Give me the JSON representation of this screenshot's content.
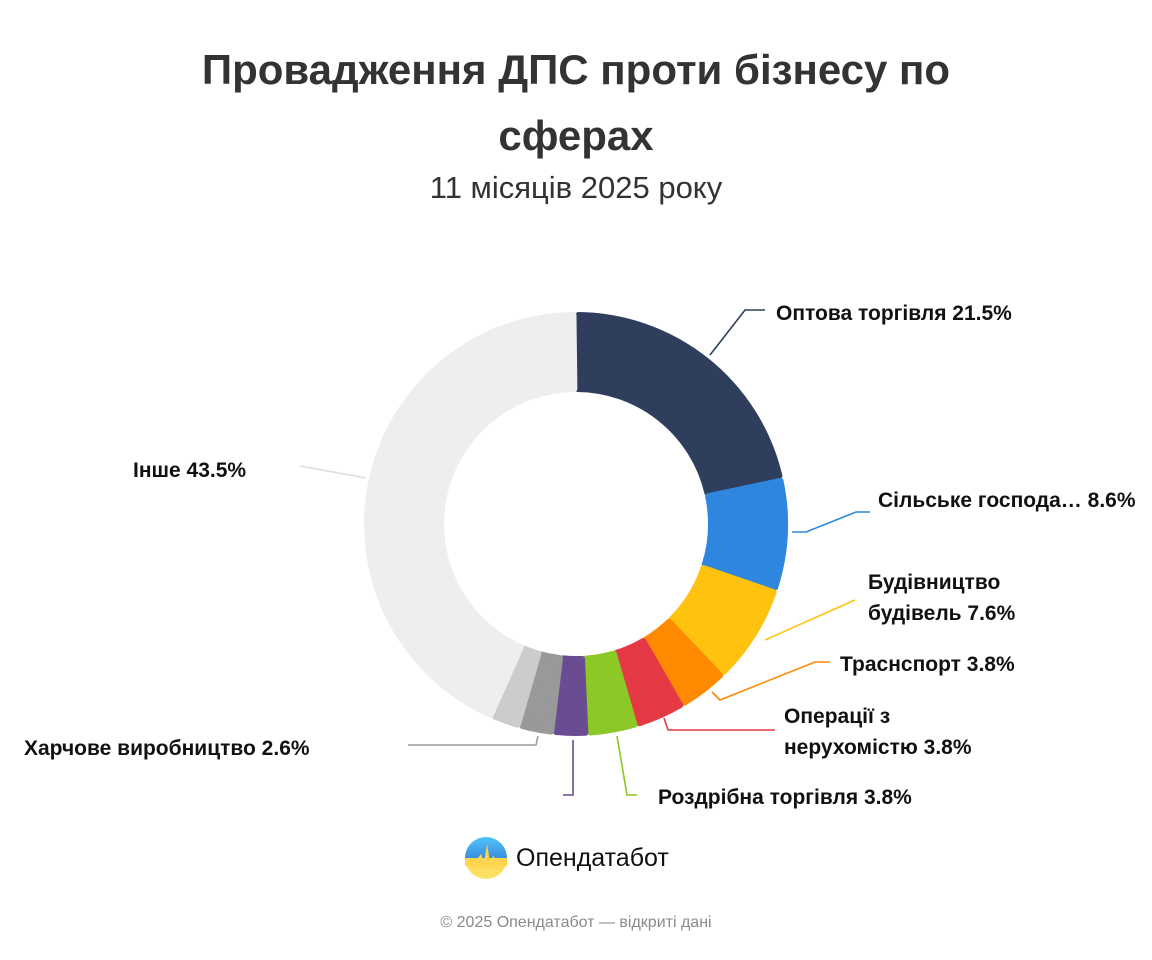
{
  "chart_data": {
    "type": "pie",
    "donut": true,
    "title": "Провадження ДПС проти бізнесу по сферах",
    "title_lines": [
      "Провадження ДПС проти бізнесу по",
      "сферах"
    ],
    "subtitle": "11 місяців 2025 року",
    "unit": "%",
    "slices": [
      {
        "name": "Оптова торгівля",
        "label": "Оптова торгівля 21.5%",
        "value": 21.5,
        "color": "#2f3e5c"
      },
      {
        "name": "Сільське господа…",
        "label": "Сільське господа… 8.6%",
        "value": 8.6,
        "color": "#2e86de"
      },
      {
        "name": "Будівництво будівель",
        "label_lines": [
          "Будівництво",
          "будівель 7.6%"
        ],
        "value": 7.6,
        "color": "#ffc20e"
      },
      {
        "name": "Траснспорт",
        "label": "Траснспорт 3.8%",
        "value": 3.8,
        "color": "#ff8a00"
      },
      {
        "name": "Операції з нерухомістю",
        "label_lines": [
          "Операції з",
          "нерухомістю 3.8%"
        ],
        "value": 3.8,
        "color": "#e63946"
      },
      {
        "name": "Роздрібна торгівля",
        "label": "Роздрібна торгівля 3.8%",
        "value": 3.8,
        "color": "#8cc826"
      },
      {
        "name": "",
        "value": 2.6,
        "color": "#6a4c93"
      },
      {
        "name": "Харчове виробництво",
        "label": "Харчове виробництво 2.6%",
        "value": 2.6,
        "color": "#999999"
      },
      {
        "name": "",
        "value": 2.2,
        "color": "#cccccc"
      },
      {
        "name": "Інше",
        "label": "Інше 43.5%",
        "value": 43.5,
        "color": "#eeeeee"
      }
    ]
  },
  "brand": {
    "name": "Опендатабот",
    "logo_text": "Опендатабот"
  },
  "footer": "© 2025 Опендатабот — відкриті дані"
}
